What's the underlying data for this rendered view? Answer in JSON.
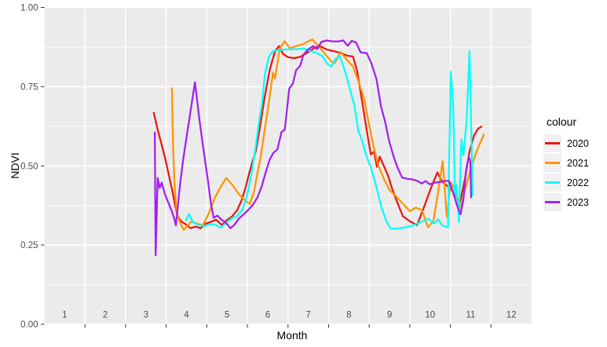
{
  "style": {
    "panel_background": "#EBEBEB",
    "gridline_color": "#FFFFFF",
    "tick_color": "#333333",
    "tick_label_color": "#4D4D4D",
    "axis_title_color": "#000000",
    "legend_key_background": "#F0F0F0"
  },
  "legend": {
    "title": "colour"
  },
  "chart_data": {
    "type": "line",
    "title": "",
    "xlabel": "Month",
    "ylabel": "NDVI",
    "xlim": [
      0.5,
      12.5
    ],
    "ylim": [
      0,
      1
    ],
    "grid": true,
    "legend_position": "right",
    "x_tick_labels": [
      "1",
      "2",
      "3",
      "4",
      "5",
      "6",
      "7",
      "8",
      "9",
      "10",
      "11",
      "12"
    ],
    "y_tick_labels": [
      "0.00",
      "0.25",
      "0.50",
      "0.75",
      "1.00"
    ],
    "y_tick_values": [
      0,
      0.25,
      0.5,
      0.75,
      1.0
    ],
    "y_minor_values": [
      0.125,
      0.375,
      0.625,
      0.875
    ],
    "x_note": "x is fractional month; vertical gridlines and ticks sit at month boundaries (1.5 ... 11.5), labels centered in each month band",
    "series": [
      {
        "name": "2020",
        "color": "#E8170F",
        "points": [
          [
            3.19,
            0.67
          ],
          [
            3.28,
            0.62
          ],
          [
            3.38,
            0.571
          ],
          [
            3.48,
            0.521
          ],
          [
            3.58,
            0.462
          ],
          [
            3.65,
            0.422
          ],
          [
            3.72,
            0.375
          ],
          [
            3.77,
            0.347
          ],
          [
            3.83,
            0.33
          ],
          [
            3.9,
            0.322
          ],
          [
            3.98,
            0.316
          ],
          [
            4.1,
            0.303
          ],
          [
            4.22,
            0.308
          ],
          [
            4.35,
            0.303
          ],
          [
            4.48,
            0.318
          ],
          [
            4.6,
            0.323
          ],
          [
            4.73,
            0.33
          ],
          [
            4.87,
            0.313
          ],
          [
            5.0,
            0.329
          ],
          [
            5.12,
            0.34
          ],
          [
            5.25,
            0.36
          ],
          [
            5.36,
            0.392
          ],
          [
            5.46,
            0.434
          ],
          [
            5.55,
            0.479
          ],
          [
            5.63,
            0.516
          ],
          [
            5.71,
            0.548
          ],
          [
            5.81,
            0.623
          ],
          [
            5.92,
            0.714
          ],
          [
            6.05,
            0.803
          ],
          [
            6.18,
            0.862
          ],
          [
            6.28,
            0.878
          ],
          [
            6.38,
            0.853
          ],
          [
            6.5,
            0.843
          ],
          [
            6.65,
            0.84
          ],
          [
            6.8,
            0.844
          ],
          [
            6.95,
            0.855
          ],
          [
            7.1,
            0.868
          ],
          [
            7.27,
            0.879
          ],
          [
            7.44,
            0.868
          ],
          [
            7.6,
            0.863
          ],
          [
            7.78,
            0.857
          ],
          [
            7.95,
            0.848
          ],
          [
            8.1,
            0.845
          ],
          [
            8.2,
            0.801
          ],
          [
            8.33,
            0.7
          ],
          [
            8.44,
            0.611
          ],
          [
            8.54,
            0.536
          ],
          [
            8.62,
            0.545
          ],
          [
            8.69,
            0.497
          ],
          [
            8.76,
            0.529
          ],
          [
            8.86,
            0.5
          ],
          [
            8.96,
            0.47
          ],
          [
            9.06,
            0.43
          ],
          [
            9.18,
            0.388
          ],
          [
            9.33,
            0.341
          ],
          [
            9.5,
            0.325
          ],
          [
            9.68,
            0.313
          ],
          [
            9.85,
            0.37
          ],
          [
            10.02,
            0.43
          ],
          [
            10.18,
            0.479
          ],
          [
            10.3,
            0.45
          ],
          [
            10.42,
            0.437
          ],
          [
            10.55,
            0.421
          ],
          [
            10.66,
            0.398
          ],
          [
            10.74,
            0.386
          ],
          [
            10.86,
            0.46
          ],
          [
            10.97,
            0.545
          ],
          [
            11.08,
            0.595
          ],
          [
            11.18,
            0.617
          ],
          [
            11.28,
            0.625
          ]
        ]
      },
      {
        "name": "2021",
        "color": "#FF9300",
        "points": [
          [
            3.64,
            0.747
          ],
          [
            3.67,
            0.56
          ],
          [
            3.71,
            0.43
          ],
          [
            3.75,
            0.362
          ],
          [
            3.81,
            0.33
          ],
          [
            3.87,
            0.313
          ],
          [
            3.93,
            0.298
          ],
          [
            4.02,
            0.31
          ],
          [
            4.12,
            0.324
          ],
          [
            4.25,
            0.318
          ],
          [
            4.4,
            0.312
          ],
          [
            4.55,
            0.35
          ],
          [
            4.7,
            0.4
          ],
          [
            4.85,
            0.435
          ],
          [
            4.98,
            0.462
          ],
          [
            5.13,
            0.44
          ],
          [
            5.3,
            0.409
          ],
          [
            5.45,
            0.39
          ],
          [
            5.56,
            0.38
          ],
          [
            5.66,
            0.417
          ],
          [
            5.75,
            0.479
          ],
          [
            5.83,
            0.53
          ],
          [
            5.93,
            0.617
          ],
          [
            6.03,
            0.7
          ],
          [
            6.13,
            0.794
          ],
          [
            6.18,
            0.776
          ],
          [
            6.3,
            0.872
          ],
          [
            6.42,
            0.893
          ],
          [
            6.55,
            0.871
          ],
          [
            6.7,
            0.878
          ],
          [
            6.85,
            0.883
          ],
          [
            7.0,
            0.893
          ],
          [
            7.1,
            0.899
          ],
          [
            7.25,
            0.878
          ],
          [
            7.4,
            0.855
          ],
          [
            7.55,
            0.832
          ],
          [
            7.65,
            0.824
          ],
          [
            7.8,
            0.859
          ],
          [
            7.95,
            0.835
          ],
          [
            8.1,
            0.814
          ],
          [
            8.25,
            0.762
          ],
          [
            8.37,
            0.715
          ],
          [
            8.5,
            0.628
          ],
          [
            8.6,
            0.566
          ],
          [
            8.72,
            0.503
          ],
          [
            8.85,
            0.462
          ],
          [
            9.0,
            0.424
          ],
          [
            9.15,
            0.405
          ],
          [
            9.32,
            0.382
          ],
          [
            9.5,
            0.357
          ],
          [
            9.65,
            0.368
          ],
          [
            9.8,
            0.36
          ],
          [
            9.95,
            0.306
          ],
          [
            10.08,
            0.326
          ],
          [
            10.2,
            0.42
          ],
          [
            10.31,
            0.515
          ],
          [
            10.41,
            0.34
          ],
          [
            10.51,
            0.448
          ],
          [
            10.61,
            0.424
          ],
          [
            10.72,
            0.362
          ],
          [
            10.86,
            0.424
          ],
          [
            11.0,
            0.49
          ],
          [
            11.15,
            0.548
          ],
          [
            11.33,
            0.601
          ]
        ]
      },
      {
        "name": "2022",
        "color": "#00FFFF",
        "points": [
          [
            3.98,
            0.326
          ],
          [
            4.06,
            0.348
          ],
          [
            4.16,
            0.322
          ],
          [
            4.3,
            0.313
          ],
          [
            4.45,
            0.31
          ],
          [
            4.6,
            0.316
          ],
          [
            4.73,
            0.313
          ],
          [
            4.85,
            0.305
          ],
          [
            5.0,
            0.323
          ],
          [
            5.12,
            0.335
          ],
          [
            5.25,
            0.342
          ],
          [
            5.38,
            0.362
          ],
          [
            5.47,
            0.397
          ],
          [
            5.55,
            0.442
          ],
          [
            5.62,
            0.491
          ],
          [
            5.69,
            0.548
          ],
          [
            5.78,
            0.632
          ],
          [
            5.86,
            0.697
          ],
          [
            5.93,
            0.789
          ],
          [
            6.03,
            0.845
          ],
          [
            6.13,
            0.862
          ],
          [
            6.3,
            0.866
          ],
          [
            6.5,
            0.868
          ],
          [
            6.7,
            0.868
          ],
          [
            6.88,
            0.871
          ],
          [
            7.05,
            0.862
          ],
          [
            7.2,
            0.857
          ],
          [
            7.35,
            0.846
          ],
          [
            7.48,
            0.82
          ],
          [
            7.57,
            0.814
          ],
          [
            7.67,
            0.838
          ],
          [
            7.78,
            0.846
          ],
          [
            7.9,
            0.801
          ],
          [
            8.03,
            0.74
          ],
          [
            8.13,
            0.695
          ],
          [
            8.23,
            0.612
          ],
          [
            8.33,
            0.578
          ],
          [
            8.43,
            0.531
          ],
          [
            8.55,
            0.491
          ],
          [
            8.68,
            0.432
          ],
          [
            8.8,
            0.37
          ],
          [
            8.92,
            0.326
          ],
          [
            9.03,
            0.301
          ],
          [
            9.2,
            0.302
          ],
          [
            9.4,
            0.306
          ],
          [
            9.58,
            0.312
          ],
          [
            9.76,
            0.322
          ],
          [
            9.95,
            0.333
          ],
          [
            10.1,
            0.318
          ],
          [
            10.2,
            0.331
          ],
          [
            10.3,
            0.312
          ],
          [
            10.38,
            0.308
          ],
          [
            10.44,
            0.306
          ],
          [
            10.51,
            0.797
          ],
          [
            10.57,
            0.69
          ],
          [
            10.61,
            0.412
          ],
          [
            10.65,
            0.44
          ],
          [
            10.71,
            0.323
          ],
          [
            10.77,
            0.583
          ],
          [
            10.82,
            0.533
          ],
          [
            10.9,
            0.645
          ],
          [
            10.97,
            0.863
          ],
          [
            11.05,
            0.404
          ]
        ]
      },
      {
        "name": "2023",
        "color": "#A220F0",
        "points": [
          [
            3.22,
            0.608
          ],
          [
            3.24,
            0.218
          ],
          [
            3.29,
            0.462
          ],
          [
            3.34,
            0.43
          ],
          [
            3.39,
            0.447
          ],
          [
            3.47,
            0.41
          ],
          [
            3.56,
            0.382
          ],
          [
            3.64,
            0.356
          ],
          [
            3.7,
            0.333
          ],
          [
            3.74,
            0.312
          ],
          [
            3.84,
            0.44
          ],
          [
            3.92,
            0.52
          ],
          [
            4.0,
            0.59
          ],
          [
            4.1,
            0.672
          ],
          [
            4.21,
            0.764
          ],
          [
            4.32,
            0.645
          ],
          [
            4.42,
            0.55
          ],
          [
            4.52,
            0.46
          ],
          [
            4.61,
            0.375
          ],
          [
            4.67,
            0.336
          ],
          [
            4.76,
            0.343
          ],
          [
            4.86,
            0.33
          ],
          [
            4.95,
            0.323
          ],
          [
            5.03,
            0.312
          ],
          [
            5.08,
            0.303
          ],
          [
            5.18,
            0.314
          ],
          [
            5.3,
            0.335
          ],
          [
            5.42,
            0.348
          ],
          [
            5.53,
            0.362
          ],
          [
            5.63,
            0.376
          ],
          [
            5.75,
            0.401
          ],
          [
            5.85,
            0.434
          ],
          [
            5.95,
            0.479
          ],
          [
            6.05,
            0.52
          ],
          [
            6.14,
            0.541
          ],
          [
            6.24,
            0.552
          ],
          [
            6.34,
            0.607
          ],
          [
            6.42,
            0.614
          ],
          [
            6.48,
            0.683
          ],
          [
            6.53,
            0.744
          ],
          [
            6.62,
            0.76
          ],
          [
            6.7,
            0.802
          ],
          [
            6.8,
            0.816
          ],
          [
            6.88,
            0.851
          ],
          [
            7.0,
            0.868
          ],
          [
            7.12,
            0.878
          ],
          [
            7.22,
            0.869
          ],
          [
            7.32,
            0.891
          ],
          [
            7.45,
            0.896
          ],
          [
            7.6,
            0.893
          ],
          [
            7.74,
            0.893
          ],
          [
            7.86,
            0.896
          ],
          [
            7.97,
            0.879
          ],
          [
            8.07,
            0.895
          ],
          [
            8.18,
            0.889
          ],
          [
            8.29,
            0.858
          ],
          [
            8.44,
            0.856
          ],
          [
            8.56,
            0.821
          ],
          [
            8.68,
            0.773
          ],
          [
            8.79,
            0.687
          ],
          [
            8.89,
            0.641
          ],
          [
            8.99,
            0.579
          ],
          [
            9.09,
            0.534
          ],
          [
            9.19,
            0.497
          ],
          [
            9.31,
            0.463
          ],
          [
            9.44,
            0.459
          ],
          [
            9.57,
            0.457
          ],
          [
            9.69,
            0.452
          ],
          [
            9.79,
            0.444
          ],
          [
            9.89,
            0.452
          ],
          [
            9.99,
            0.442
          ],
          [
            10.12,
            0.447
          ],
          [
            10.25,
            0.449
          ],
          [
            10.37,
            0.452
          ],
          [
            10.46,
            0.453
          ],
          [
            10.56,
            0.418
          ],
          [
            10.66,
            0.376
          ],
          [
            10.75,
            0.347
          ],
          [
            10.82,
            0.392
          ],
          [
            10.89,
            0.489
          ],
          [
            10.95,
            0.529
          ],
          [
            10.99,
            0.515
          ],
          [
            11.01,
            0.398
          ]
        ]
      }
    ]
  }
}
